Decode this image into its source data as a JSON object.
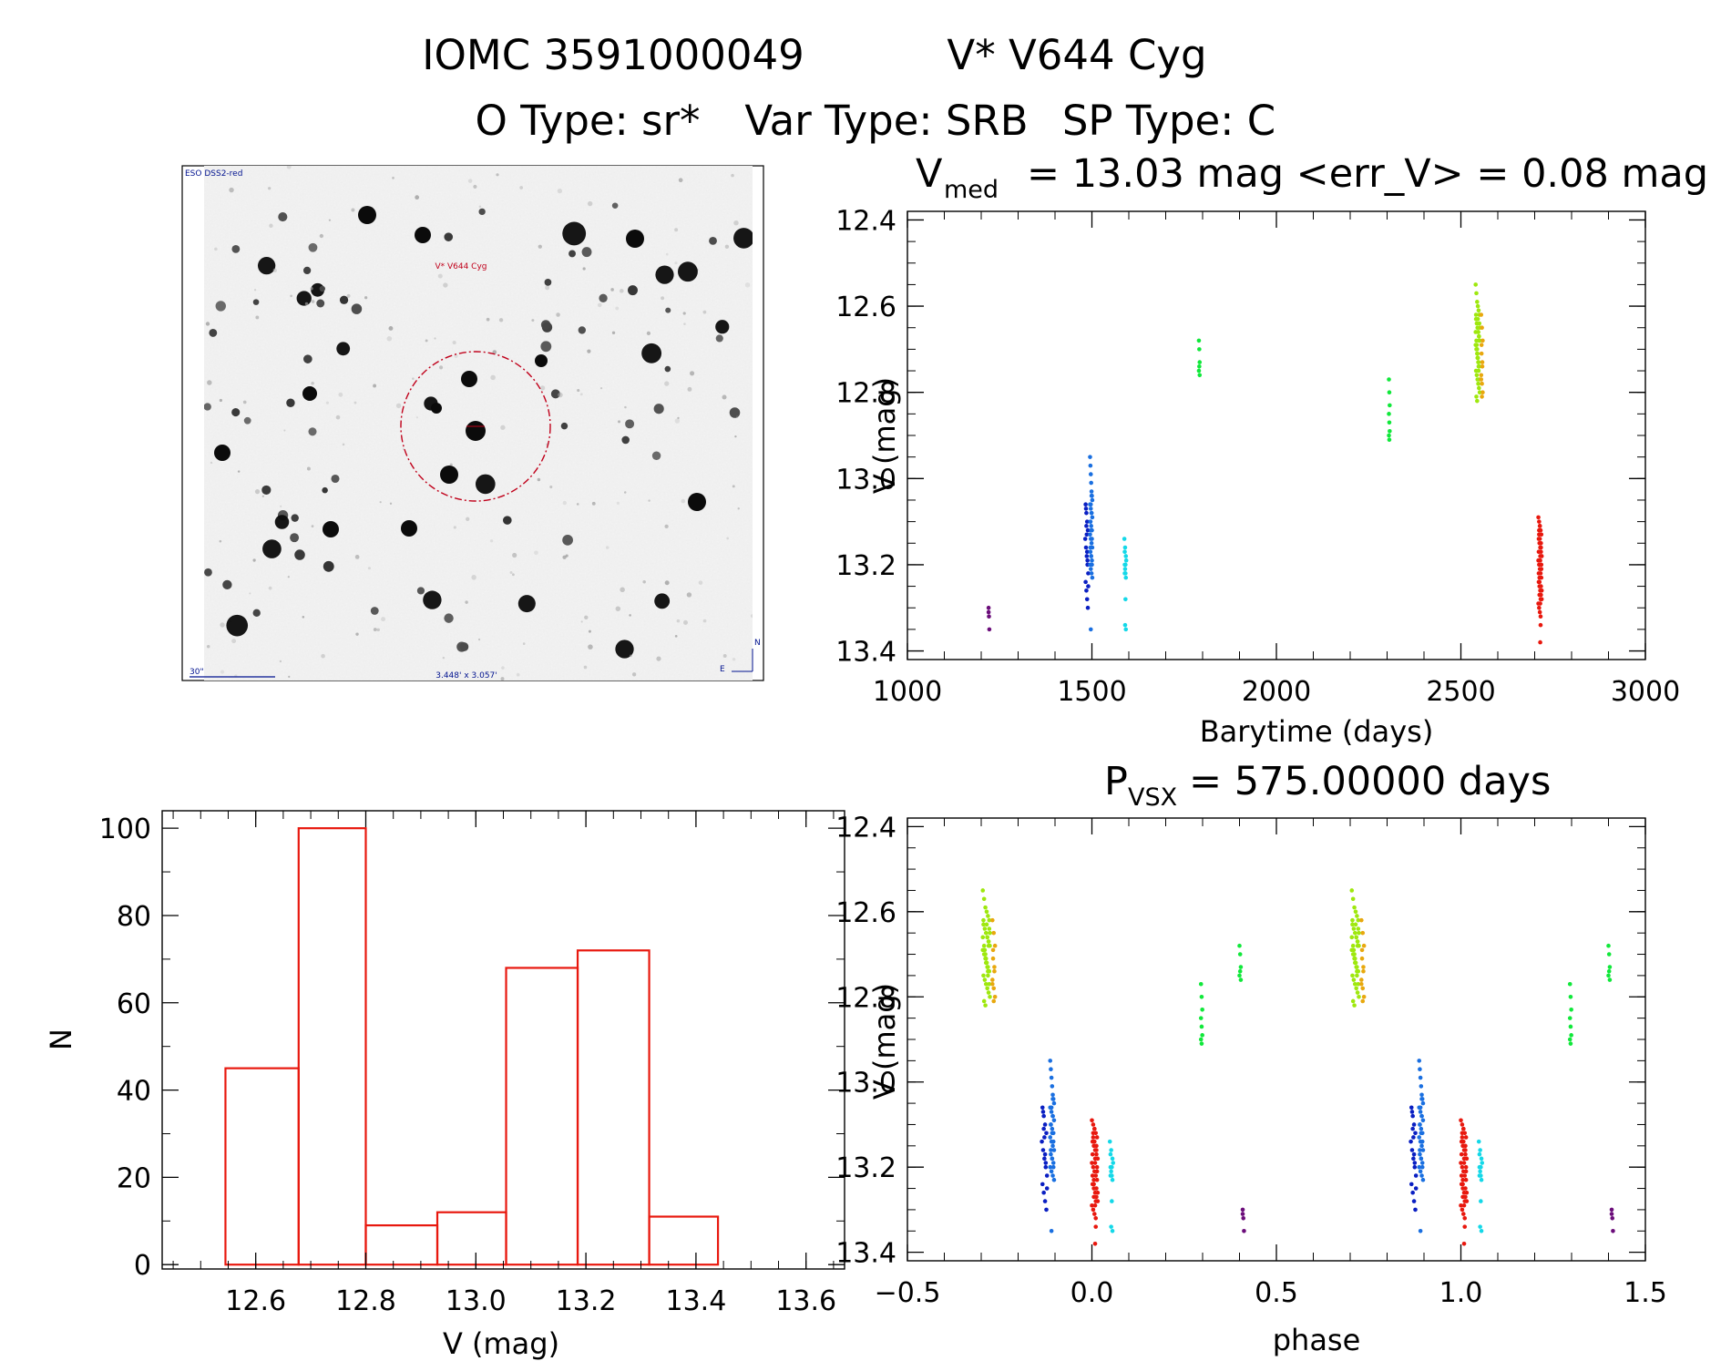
{
  "header": {
    "title_id": "IOMC 3591000049",
    "title_name": "V* V644 Cyg",
    "o_type": "O Type: sr*",
    "var_type": "Var Type: SRB",
    "sp_type": "SP Type: C"
  },
  "finder_chart": {
    "survey_label": "ESO DSS2-red",
    "target_label": "V* V644 Cyg",
    "scale_label": "30\"",
    "size_label": "3.448' x 3.057'",
    "north_label": "N",
    "east_label": "E",
    "target_color": "#c0001a",
    "label_color": "#00128f"
  },
  "colors": {
    "purple": "#6b0d7a",
    "blue": "#0a1fc2",
    "mid_blue": "#1a6fe0",
    "cyan": "#14d8e8",
    "green": "#10e83a",
    "lime": "#9ee80e",
    "orange": "#e8a80e",
    "red": "#e8180e",
    "hist_color": "#e8180e"
  },
  "chart_data": [
    {
      "type": "scatter",
      "name": "light-curve",
      "title_prefix": "V",
      "title_sub": "med",
      "title_rest": "= 13.03 mag <err_V> = 0.08 mag",
      "xlabel": "Barytime (days)",
      "ylabel": "V (mag)",
      "xlim": [
        1000,
        3000
      ],
      "ylim": [
        13.42,
        12.38
      ],
      "xticks": [
        1000,
        1500,
        2000,
        2500,
        3000
      ],
      "xtick_labels": [
        "1000",
        "1500",
        "2000",
        "2500",
        "3000"
      ],
      "yticks": [
        12.4,
        12.6,
        12.8,
        13.0,
        13.2,
        13.4
      ],
      "ytick_labels": [
        "12.4",
        "12.6",
        "12.8",
        "13.0",
        "13.2",
        "13.4"
      ],
      "series": [
        {
          "name": "season-1",
          "color": "purple",
          "x": [
            1220,
            1220,
            1221,
            1222
          ],
          "y": [
            13.3,
            13.31,
            13.32,
            13.35
          ]
        },
        {
          "name": "season-2a",
          "color": "blue",
          "x": [
            1483,
            1485,
            1487,
            1489,
            1482,
            1484,
            1486,
            1488,
            1490,
            1483,
            1485,
            1487,
            1489,
            1484,
            1486,
            1488,
            1490,
            1485,
            1487
          ],
          "y": [
            13.06,
            13.08,
            13.1,
            13.12,
            13.14,
            13.16,
            13.18,
            13.2,
            13.22,
            13.24,
            13.26,
            13.28,
            13.3,
            13.07,
            13.13,
            13.19,
            13.25,
            13.11,
            13.17
          ]
        },
        {
          "name": "season-2b",
          "color": "mid_blue",
          "x": [
            1495,
            1496,
            1497,
            1498,
            1499,
            1500,
            1501,
            1495,
            1497,
            1499,
            1501,
            1496,
            1498,
            1500,
            1495,
            1497,
            1499,
            1501,
            1496,
            1498,
            1500,
            1495,
            1497,
            1499,
            1501,
            1496,
            1498,
            1500,
            1497,
            1499,
            1496,
            1498,
            1500,
            1497,
            1499
          ],
          "y": [
            12.95,
            12.97,
            12.99,
            13.01,
            13.03,
            13.04,
            13.05,
            13.06,
            13.07,
            13.08,
            13.09,
            13.1,
            13.11,
            13.12,
            13.13,
            13.14,
            13.15,
            13.16,
            13.17,
            13.18,
            13.19,
            13.2,
            13.21,
            13.22,
            13.23,
            13.1,
            13.12,
            13.14,
            13.06,
            13.08,
            13.16,
            13.18,
            13.2,
            13.35,
            13.04
          ]
        },
        {
          "name": "season-3",
          "color": "cyan",
          "x": [
            1588,
            1590,
            1592,
            1589,
            1591,
            1593,
            1590,
            1592,
            1589,
            1591,
            1590,
            1592,
            1589,
            1591
          ],
          "y": [
            13.14,
            13.16,
            13.18,
            13.2,
            13.22,
            13.19,
            13.21,
            13.23,
            13.17,
            13.28,
            13.34,
            13.35,
            13.22,
            13.2
          ]
        },
        {
          "name": "season-4",
          "color": "green",
          "x": [
            1790,
            1791,
            1792,
            1790,
            1791,
            1792
          ],
          "y": [
            12.68,
            12.7,
            12.73,
            12.75,
            12.74,
            12.76
          ]
        },
        {
          "name": "season-5",
          "color": "green",
          "x": [
            2305,
            2306,
            2307,
            2305,
            2306,
            2307,
            2305,
            2306
          ],
          "y": [
            12.77,
            12.8,
            12.83,
            12.85,
            12.87,
            12.89,
            12.9,
            12.91
          ]
        },
        {
          "name": "season-6a",
          "color": "lime",
          "x": [
            2540,
            2542,
            2544,
            2546,
            2548,
            2550,
            2541,
            2543,
            2545,
            2547,
            2549,
            2551,
            2540,
            2542,
            2544,
            2546,
            2548,
            2550,
            2541,
            2543,
            2545,
            2547,
            2549,
            2551,
            2540,
            2542,
            2544,
            2546,
            2548,
            2550,
            2541,
            2543,
            2545,
            2547,
            2549,
            2551,
            2542,
            2544,
            2546,
            2548,
            2550,
            2543,
            2545,
            2547,
            2549
          ],
          "y": [
            12.55,
            12.57,
            12.59,
            12.6,
            12.61,
            12.62,
            12.63,
            12.64,
            12.65,
            12.66,
            12.67,
            12.68,
            12.69,
            12.7,
            12.71,
            12.72,
            12.73,
            12.74,
            12.75,
            12.76,
            12.77,
            12.78,
            12.79,
            12.8,
            12.66,
            12.68,
            12.7,
            12.72,
            12.74,
            12.64,
            12.62,
            12.69,
            12.71,
            12.73,
            12.67,
            12.65,
            12.81,
            12.82,
            12.63,
            12.75,
            12.77,
            12.7,
            12.72,
            12.66,
            12.68
          ]
        },
        {
          "name": "season-6b",
          "color": "orange",
          "x": [
            2555,
            2557,
            2559,
            2556,
            2558,
            2555,
            2557,
            2559,
            2556,
            2558,
            2555,
            2557
          ],
          "y": [
            12.62,
            12.65,
            12.68,
            12.71,
            12.74,
            12.76,
            12.78,
            12.8,
            12.69,
            12.73,
            12.77,
            12.81
          ]
        },
        {
          "name": "season-7",
          "color": "red",
          "x": [
            2710,
            2712,
            2714,
            2716,
            2718,
            2711,
            2713,
            2715,
            2717,
            2719,
            2710,
            2712,
            2714,
            2716,
            2718,
            2711,
            2713,
            2715,
            2717,
            2719,
            2710,
            2712,
            2714,
            2716,
            2718,
            2711,
            2713,
            2715,
            2717,
            2719,
            2712,
            2714,
            2716,
            2718,
            2713,
            2715,
            2717,
            2711,
            2713,
            2715,
            2717,
            2712,
            2714,
            2716,
            2715
          ],
          "y": [
            13.09,
            13.1,
            13.11,
            13.12,
            13.13,
            13.14,
            13.15,
            13.16,
            13.17,
            13.18,
            13.19,
            13.2,
            13.21,
            13.22,
            13.23,
            13.24,
            13.25,
            13.26,
            13.27,
            13.28,
            13.29,
            13.3,
            13.31,
            13.32,
            13.2,
            13.22,
            13.24,
            13.18,
            13.16,
            13.26,
            13.12,
            13.14,
            13.28,
            13.21,
            13.23,
            13.19,
            13.25,
            13.17,
            13.27,
            13.29,
            13.15,
            13.13,
            13.11,
            13.34,
            13.38
          ]
        }
      ]
    },
    {
      "type": "bar",
      "name": "magnitude-histogram",
      "xlabel": "V (mag)",
      "ylabel": "N",
      "xlim": [
        12.43,
        13.67
      ],
      "ylim": [
        -1,
        104
      ],
      "bin_edges": [
        12.545,
        12.678,
        12.8,
        12.93,
        13.055,
        13.185,
        13.315,
        13.44
      ],
      "values": [
        45,
        100,
        9,
        12,
        68,
        72,
        11
      ],
      "xticks": [
        12.6,
        12.8,
        13.0,
        13.2,
        13.4,
        13.6
      ],
      "xtick_labels": [
        "12.6",
        "12.8",
        "13.0",
        "13.2",
        "13.4",
        "13.6"
      ],
      "yticks": [
        0,
        20,
        40,
        60,
        80,
        100
      ],
      "ytick_labels": [
        "0",
        "20",
        "40",
        "60",
        "80",
        "100"
      ]
    },
    {
      "type": "scatter",
      "name": "phased-curve",
      "title_prefix": "P",
      "title_sub": "VSX",
      "title_rest": "= 575.00000 days",
      "xlabel": "phase",
      "ylabel": "V (mag)",
      "xlim": [
        -0.5,
        1.5
      ],
      "ylim": [
        13.42,
        12.38
      ],
      "xticks": [
        -0.5,
        0.0,
        0.5,
        1.0,
        1.5
      ],
      "xtick_labels": [
        "−0.5",
        "0.0",
        "0.5",
        "1.0",
        "1.5"
      ],
      "yticks": [
        12.4,
        12.6,
        12.8,
        13.0,
        13.2,
        13.4
      ],
      "ytick_labels": [
        "12.4",
        "12.6",
        "12.8",
        "13.0",
        "13.2",
        "13.4"
      ],
      "period": 575.0,
      "epoch": 2710
    }
  ]
}
